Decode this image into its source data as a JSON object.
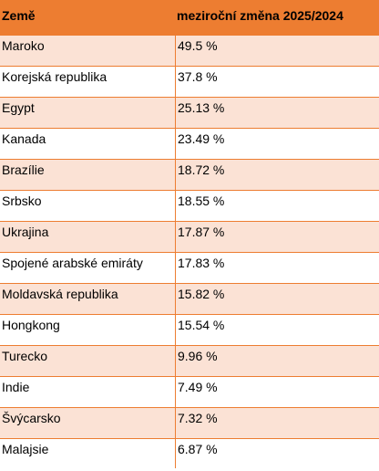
{
  "table": {
    "headers": {
      "country": "Země",
      "change": "meziroční změna 2025/2024"
    },
    "rows": [
      {
        "country": "Maroko",
        "change": "49.5 %"
      },
      {
        "country": "Korejská republika",
        "change": "37.8 %"
      },
      {
        "country": "Egypt",
        "change": "25.13 %"
      },
      {
        "country": "Kanada",
        "change": "23.49 %"
      },
      {
        "country": "Brazílie",
        "change": "18.72 %"
      },
      {
        "country": "Srbsko",
        "change": "18.55 %"
      },
      {
        "country": "Ukrajina",
        "change": "17.87 %"
      },
      {
        "country": "Spojené arabské emiráty",
        "change": "17.83 %"
      },
      {
        "country": "Moldavská republika",
        "change": "15.82 %"
      },
      {
        "country": "Hongkong",
        "change": "15.54 %"
      },
      {
        "country": "Turecko",
        "change": "9.96 %"
      },
      {
        "country": "Indie",
        "change": "7.49 %"
      },
      {
        "country": "Švýcarsko",
        "change": "7.32 %"
      },
      {
        "country": "Malajsie",
        "change": "6.87 %"
      }
    ],
    "colors": {
      "header": "#ed7d31",
      "shaded_row": "#fbe2d5",
      "plain_row": "#ffffff",
      "border": "#ed7d31"
    }
  }
}
